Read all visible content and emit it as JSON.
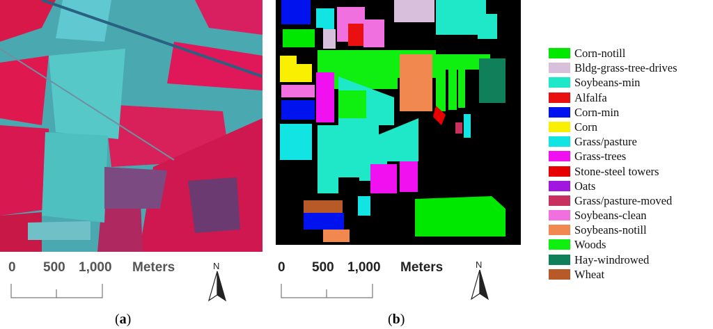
{
  "panels": {
    "a": {
      "caption_letter": "a",
      "scale": {
        "tick_0": "0",
        "tick_1": "500",
        "tick_2": "1,000",
        "unit": "Meters"
      },
      "north_label": "N"
    },
    "b": {
      "caption_letter": "b",
      "scale": {
        "tick_0": "0",
        "tick_1": "500",
        "tick_2": "1,000",
        "unit": "Meters"
      },
      "north_label": "N"
    }
  },
  "legend": [
    {
      "label": "Corn-notill",
      "color": "#00e800"
    },
    {
      "label": "Bldg-grass-tree-drives",
      "color": "#d8c0dc"
    },
    {
      "label": "Soybeans-min",
      "color": "#1ee8c8"
    },
    {
      "label": "Alfalfa",
      "color": "#e81010"
    },
    {
      "label": "Corn-min",
      "color": "#0012ee"
    },
    {
      "label": "Corn",
      "color": "#f8f000"
    },
    {
      "label": "Grass/pasture",
      "color": "#12e4e4"
    },
    {
      "label": "Grass-trees",
      "color": "#f010f0"
    },
    {
      "label": "Stone-steel towers",
      "color": "#e80000"
    },
    {
      "label": "Oats",
      "color": "#a018e0"
    },
    {
      "label": "Grass/pasture-moved",
      "color": "#c83060"
    },
    {
      "label": "Soybeans-clean",
      "color": "#f070e0"
    },
    {
      "label": "Soybeans-notill",
      "color": "#f08850"
    },
    {
      "label": "Woods",
      "color": "#10f010"
    },
    {
      "label": "Hay-windrowed",
      "color": "#10805a"
    },
    {
      "label": "Wheat",
      "color": "#b85a28"
    }
  ]
}
